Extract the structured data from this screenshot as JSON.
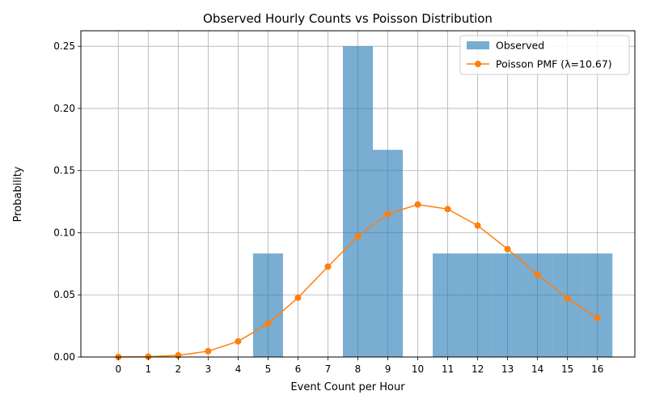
{
  "chart_data": {
    "type": "bar",
    "title": "Observed Hourly Counts vs Poisson Distribution",
    "xlabel": "Event Count per Hour",
    "ylabel": "Probability",
    "xlim": [
      -1.25,
      17.25
    ],
    "ylim": [
      0,
      0.2625
    ],
    "x_ticks": [
      0,
      1,
      2,
      3,
      4,
      5,
      6,
      7,
      8,
      9,
      10,
      11,
      12,
      13,
      14,
      15,
      16
    ],
    "y_ticks": [
      0,
      0.05,
      0.1,
      0.15,
      0.2,
      0.25
    ],
    "y_tick_labels": [
      "0.00",
      "0.05",
      "0.10",
      "0.15",
      "0.20",
      "0.25"
    ],
    "grid": true,
    "legend_position": "top-right",
    "series": [
      {
        "name": "Observed",
        "kind": "bar",
        "color": "#1f77b4",
        "opacity": 0.6,
        "x": [
          5,
          8,
          9,
          11,
          12,
          13,
          14,
          15,
          16
        ],
        "values": [
          0.0833,
          0.25,
          0.1667,
          0.0833,
          0.0833,
          0.0833,
          0.0833,
          0.0833,
          0.0833
        ]
      },
      {
        "name": "Poisson PMF (λ=10.67)",
        "kind": "line",
        "color": "#ff7f0e",
        "marker": "circle",
        "x": [
          0,
          1,
          2,
          3,
          4,
          5,
          6,
          7,
          8,
          9,
          10,
          11,
          12,
          13,
          14,
          15,
          16
        ],
        "values": [
          2e-05,
          0.00025,
          0.0013,
          0.0047,
          0.0126,
          0.0268,
          0.0477,
          0.0727,
          0.097,
          0.115,
          0.1227,
          0.119,
          0.1058,
          0.0868,
          0.0662,
          0.0471,
          0.0314
        ]
      }
    ]
  }
}
